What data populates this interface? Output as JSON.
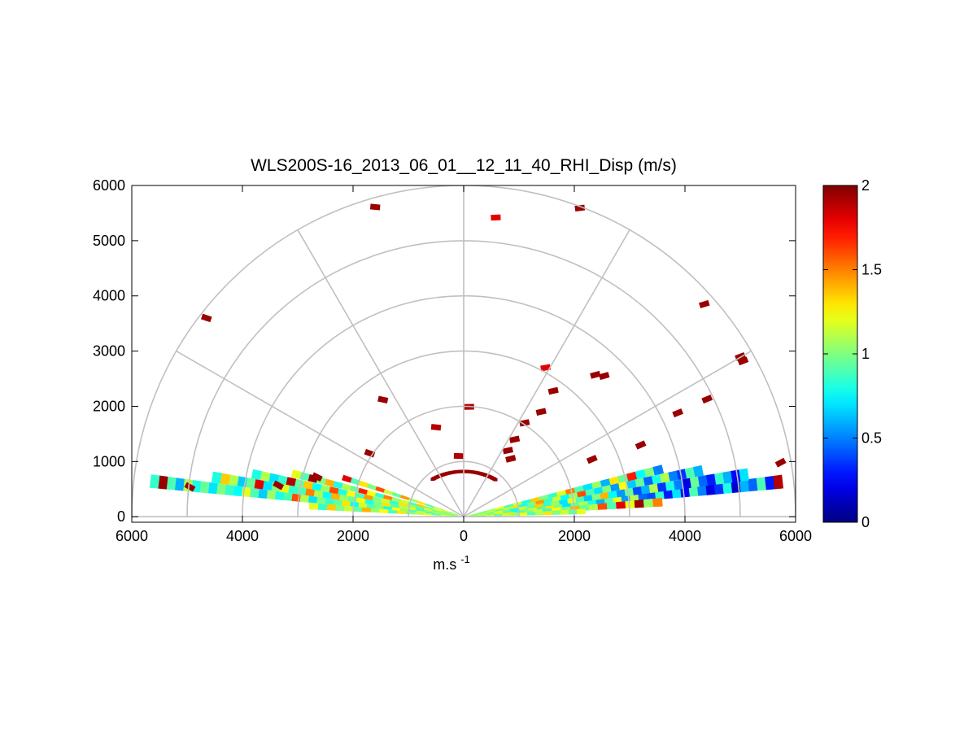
{
  "chart_data": {
    "type": "heatmap",
    "subtype": "polar-rhi",
    "title": "WLS200S-16_2013_06_01__12_11_40_RHI_Disp (m/s)",
    "xlabel_base": "m.s",
    "xlabel_sup": "-1",
    "ylabel": "",
    "xlim": [
      -6000,
      6000
    ],
    "ylim": [
      -100,
      6000
    ],
    "x_ticks": [
      -6000,
      -4000,
      -2000,
      0,
      2000,
      4000,
      6000
    ],
    "x_tick_labels": [
      "6000",
      "4000",
      "2000",
      "0",
      "2000",
      "4000",
      "6000"
    ],
    "y_ticks": [
      0,
      1000,
      2000,
      3000,
      4000,
      5000,
      6000
    ],
    "y_tick_labels": [
      "0",
      "1000",
      "2000",
      "3000",
      "4000",
      "5000",
      "6000"
    ],
    "polar_grid": {
      "rings": [
        1000,
        2000,
        3000,
        4000,
        5000,
        6000
      ],
      "spokes_deg": [
        0,
        30,
        60,
        90,
        120,
        150,
        180
      ]
    },
    "colorbar": {
      "colormap": "jet",
      "min": 0,
      "max": 2,
      "ticks": [
        0,
        0.5,
        1,
        1.5,
        2
      ],
      "tick_labels": [
        "0",
        "0.5",
        "1",
        "1.5",
        "2"
      ]
    },
    "scans": [
      {
        "azimuth_deg": 6.3,
        "range_start": 100,
        "range_end": 5800,
        "values": [
          1.05,
          0.95,
          1.1,
          1.2,
          0.85,
          0.75,
          1.0,
          1.15,
          0.9,
          1.3,
          1.0,
          0.7,
          0.95,
          1.1,
          0.8,
          0.6,
          0.9,
          1.2,
          0.55,
          1.1,
          0.45,
          0.4,
          0.85,
          0.3,
          0.7,
          0.25,
          0.9,
          0.5,
          0.2,
          0.35,
          0.8,
          0.15,
          0.6,
          0.45,
          0.9,
          0.3,
          1.9
        ]
      },
      {
        "azimuth_deg": 8.5,
        "range_start": 100,
        "range_end": 5200,
        "values": [
          1.0,
          1.1,
          0.9,
          1.25,
          1.0,
          0.8,
          1.15,
          0.95,
          1.35,
          0.85,
          1.05,
          0.7,
          1.2,
          0.9,
          0.65,
          1.0,
          1.4,
          0.75,
          0.55,
          0.95,
          0.4,
          0.6,
          1.1,
          0.35,
          0.8,
          0.5,
          0.2,
          0.95,
          0.45,
          0.3,
          0.85,
          0.6,
          0.25,
          0.7
        ]
      },
      {
        "azimuth_deg": 11.0,
        "range_start": 100,
        "range_end": 4400,
        "values": [
          0.95,
          1.05,
          1.2,
          0.9,
          1.1,
          1.3,
          0.8,
          1.0,
          1.45,
          0.85,
          1.15,
          0.75,
          1.05,
          1.6,
          0.9,
          0.7,
          1.0,
          0.55,
          1.25,
          0.65,
          0.95,
          0.45,
          0.8,
          1.1,
          0.5,
          0.35,
          0.9,
          0.6
        ]
      },
      {
        "azimuth_deg": 13.5,
        "range_start": 100,
        "range_end": 3700,
        "values": [
          1.1,
          0.95,
          1.05,
          1.25,
          0.9,
          1.15,
          0.8,
          1.35,
          1.0,
          0.85,
          1.2,
          1.5,
          0.9,
          0.7,
          1.05,
          0.6,
          1.3,
          0.95,
          1.7,
          0.75,
          1.0,
          0.5
        ]
      },
      {
        "azimuth_deg": 4.2,
        "range_start": 100,
        "range_end": 3600,
        "values": [
          1.05,
          1.2,
          0.95,
          1.1,
          1.3,
          0.9,
          1.0,
          1.15,
          0.85,
          1.25,
          1.0,
          1.4,
          0.95,
          1.1,
          1.6,
          0.9,
          1.8,
          1.2,
          1.95,
          1.05,
          1.5
        ]
      },
      {
        "azimuth_deg": 2.5,
        "range_start": 100,
        "range_end": 2200,
        "values": [
          1.1,
          1.0,
          1.2,
          0.95,
          1.15,
          1.05,
          1.25,
          0.9,
          1.1,
          1.3,
          1.0,
          1.15,
          0.95,
          1.2
        ]
      },
      {
        "azimuth_deg": 173.5,
        "range_start": 100,
        "range_end": 5700,
        "values": [
          1.0,
          1.1,
          0.95,
          0.85,
          1.2,
          0.9,
          1.05,
          1.25,
          0.8,
          1.0,
          0.9,
          1.15,
          0.75,
          1.3,
          0.95,
          0.85,
          1.0,
          0.7,
          1.1,
          1.6,
          0.9,
          0.8,
          1.05,
          0.65,
          0.9,
          1.2,
          0.75,
          0.85,
          1.0,
          0.7,
          0.95,
          0.8,
          1.1,
          0.6,
          0.9,
          1.95,
          0.85
        ]
      },
      {
        "azimuth_deg": 171.0,
        "range_start": 100,
        "range_end": 4600,
        "values": [
          1.05,
          0.95,
          1.15,
          1.0,
          0.85,
          1.2,
          1.1,
          0.9,
          1.3,
          1.0,
          0.8,
          1.25,
          0.95,
          1.05,
          1.4,
          0.75,
          1.1,
          1.5,
          0.9,
          0.85,
          1.2,
          1.0,
          0.7,
          1.8,
          0.95,
          0.65,
          1.1,
          1.35,
          0.8
        ]
      },
      {
        "azimuth_deg": 168.5,
        "range_start": 100,
        "range_end": 3900,
        "values": [
          1.0,
          1.1,
          0.95,
          1.2,
          0.9,
          1.05,
          1.3,
          0.85,
          1.15,
          1.0,
          1.45,
          0.9,
          1.25,
          0.8,
          1.6,
          1.05,
          0.75,
          1.35,
          0.95,
          1.9,
          0.85,
          0.7,
          1.1,
          0.8
        ]
      },
      {
        "azimuth_deg": 165.8,
        "range_start": 100,
        "range_end": 3200,
        "values": [
          1.1,
          0.95,
          1.2,
          1.0,
          1.35,
          0.9,
          1.15,
          1.05,
          1.5,
          0.85,
          1.25,
          1.7,
          0.95,
          1.1,
          0.8,
          1.4,
          1.0,
          1.95,
          0.9,
          1.2
        ]
      },
      {
        "azimuth_deg": 176.0,
        "range_start": 100,
        "range_end": 2800,
        "values": [
          1.05,
          1.15,
          0.95,
          1.2,
          1.1,
          1.0,
          1.3,
          0.9,
          1.25,
          1.05,
          1.4,
          0.95,
          1.15,
          1.0,
          1.35,
          0.85,
          1.2
        ]
      },
      {
        "azimuth_deg": 162.0,
        "range_start": 100,
        "range_end": 2300,
        "values": [
          1.0,
          1.2,
          1.1,
          0.9,
          1.3,
          1.05,
          1.45,
          0.95,
          1.15,
          1.6,
          1.0,
          1.3,
          0.9,
          1.8
        ]
      }
    ],
    "scatter_points": [
      {
        "x": -4650,
        "y": 3600,
        "v": 1.95
      },
      {
        "x": -1600,
        "y": 5610,
        "v": 1.95
      },
      {
        "x": 580,
        "y": 5420,
        "v": 1.8
      },
      {
        "x": 2100,
        "y": 5590,
        "v": 1.95
      },
      {
        "x": 4350,
        "y": 3850,
        "v": 1.95
      },
      {
        "x": 5000,
        "y": 2900,
        "v": 1.95
      },
      {
        "x": 5050,
        "y": 2820,
        "v": 1.95
      },
      {
        "x": 4400,
        "y": 2130,
        "v": 1.95
      },
      {
        "x": 3870,
        "y": 1880,
        "v": 1.95
      },
      {
        "x": 3200,
        "y": 1300,
        "v": 1.95
      },
      {
        "x": 2380,
        "y": 2570,
        "v": 1.95
      },
      {
        "x": 2540,
        "y": 2550,
        "v": 1.95
      },
      {
        "x": 1480,
        "y": 2700,
        "v": 1.8
      },
      {
        "x": 1620,
        "y": 2280,
        "v": 1.95
      },
      {
        "x": 1400,
        "y": 1900,
        "v": 1.95
      },
      {
        "x": 1100,
        "y": 1700,
        "v": 1.95
      },
      {
        "x": 920,
        "y": 1400,
        "v": 1.95
      },
      {
        "x": 800,
        "y": 1200,
        "v": 1.95
      },
      {
        "x": -1460,
        "y": 2120,
        "v": 1.95
      },
      {
        "x": -1700,
        "y": 1150,
        "v": 1.95
      },
      {
        "x": 2320,
        "y": 1040,
        "v": 1.95
      },
      {
        "x": 5730,
        "y": 980,
        "v": 1.95
      },
      {
        "x": -4950,
        "y": 540,
        "v": 1.95
      },
      {
        "x": -2650,
        "y": 720,
        "v": 1.95
      },
      {
        "x": -3350,
        "y": 570,
        "v": 1.95
      },
      {
        "x": -500,
        "y": 1620,
        "v": 1.9
      },
      {
        "x": 100,
        "y": 1990,
        "v": 1.9
      },
      {
        "x": 850,
        "y": 1050,
        "v": 1.95
      },
      {
        "x": -90,
        "y": 1100,
        "v": 1.9
      }
    ],
    "near_arc_ring": {
      "range": 1000,
      "from_deg": 55,
      "to_deg": 125,
      "v": 1.95
    }
  }
}
